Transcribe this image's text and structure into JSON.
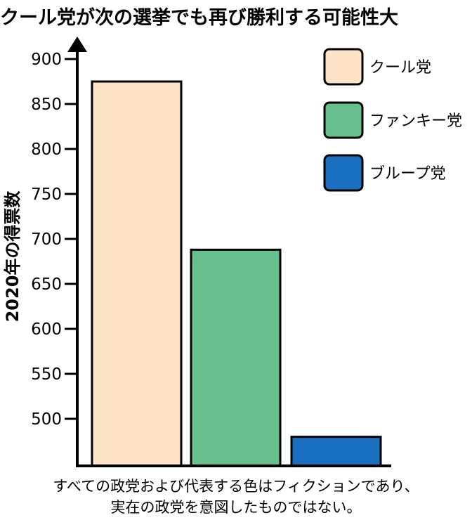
{
  "chart_data": {
    "type": "bar",
    "title": "クール党が次の選挙でも再び勝利する可能性大",
    "ylabel": "2020年の得票数",
    "xlabel": "",
    "categories": [
      "クール党",
      "ファンキー党",
      "ブループ党"
    ],
    "values": [
      875,
      688,
      480
    ],
    "ylim": [
      450,
      925
    ],
    "yticks": [
      500,
      550,
      600,
      650,
      700,
      750,
      800,
      850,
      900
    ],
    "colors": [
      "#fde3c8",
      "#66bf8c",
      "#1a6fc0"
    ],
    "legend": {
      "placement": "top-right",
      "entries": [
        "クール党",
        "ファンキー党",
        "ブループ党"
      ]
    },
    "grid": false
  },
  "caption": {
    "line1": "すべての政党および代表する色はフィクションであり、",
    "line2": "実在の政党を意図したものではない。"
  }
}
